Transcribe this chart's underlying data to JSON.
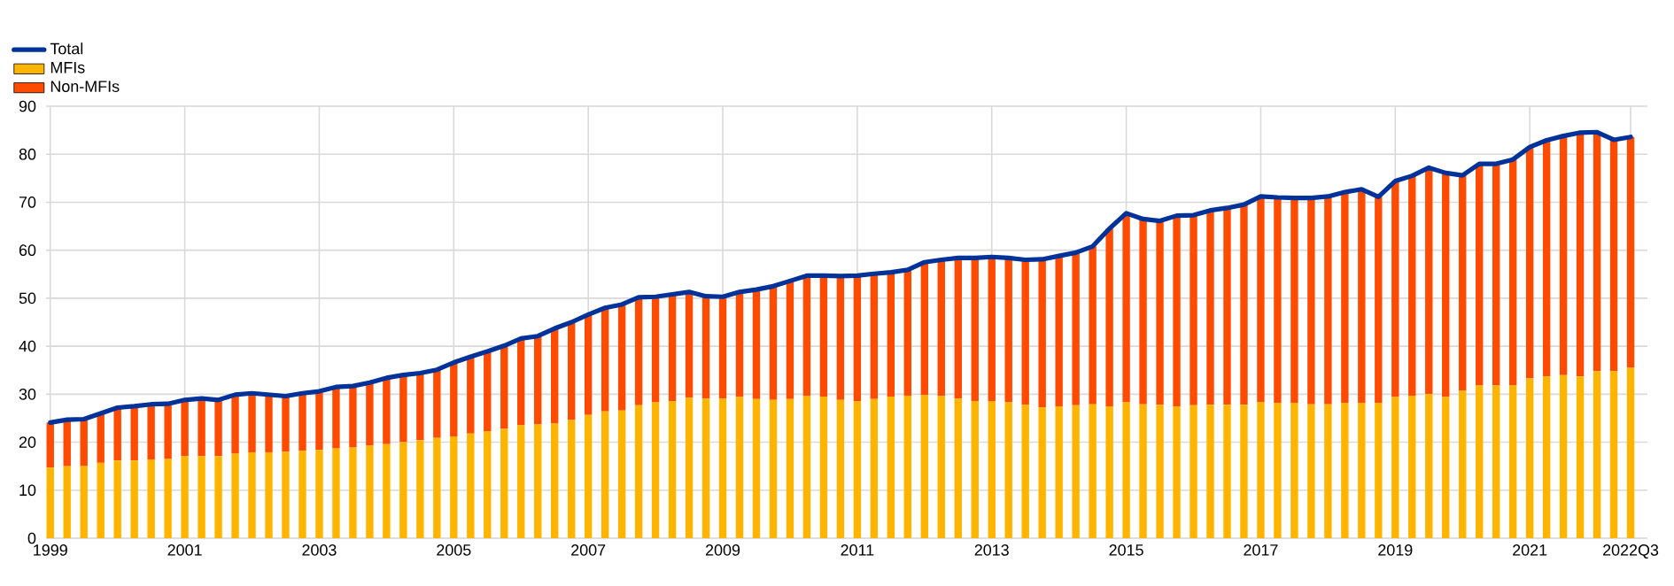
{
  "chart_data": {
    "type": "bar",
    "stacked": true,
    "grid": true,
    "legend": "top left",
    "marker": "none",
    "categories": [
      "1999",
      null,
      null,
      null,
      null,
      null,
      null,
      null,
      "2001",
      null,
      null,
      null,
      null,
      null,
      null,
      null,
      "2003",
      null,
      null,
      null,
      null,
      null,
      null,
      null,
      "2005",
      null,
      null,
      null,
      null,
      null,
      null,
      null,
      "2007",
      null,
      null,
      null,
      null,
      null,
      null,
      null,
      "2009",
      null,
      null,
      null,
      null,
      null,
      null,
      null,
      "2011",
      null,
      null,
      null,
      null,
      null,
      null,
      null,
      "2013",
      null,
      null,
      null,
      null,
      null,
      null,
      null,
      "2015",
      null,
      null,
      null,
      null,
      null,
      null,
      null,
      "2017",
      null,
      null,
      null,
      null,
      null,
      null,
      null,
      "2019",
      null,
      null,
      null,
      null,
      null,
      null,
      null,
      "2021",
      null,
      null,
      null,
      null,
      null,
      "2022Q3"
    ],
    "ylim": [
      0,
      90
    ],
    "yticks": [
      0,
      10,
      20,
      30,
      40,
      50,
      60,
      70,
      80,
      90
    ],
    "series": [
      {
        "name": "Total",
        "type": "line",
        "color": "#003299",
        "values": [
          24.1,
          24.7,
          24.8,
          26.0,
          27.2,
          27.5,
          27.9,
          28.0,
          28.8,
          29.1,
          28.8,
          29.9,
          30.2,
          29.9,
          29.6,
          30.2,
          30.6,
          31.5,
          31.7,
          32.4,
          33.4,
          34.0,
          34.4,
          35.1,
          36.6,
          37.8,
          38.9,
          40.1,
          41.6,
          42.1,
          43.7,
          45.0,
          46.6,
          48.0,
          48.7,
          50.2,
          50.3,
          50.8,
          51.3,
          50.4,
          50.3,
          51.3,
          51.8,
          52.5,
          53.6,
          54.7,
          54.7,
          54.6,
          54.7,
          55.1,
          55.4,
          55.9,
          57.5,
          58.0,
          58.4,
          58.4,
          58.6,
          58.4,
          58.0,
          58.1,
          58.8,
          59.5,
          60.8,
          64.5,
          67.7,
          66.5,
          66.1,
          67.2,
          67.3,
          68.3,
          68.8,
          69.5,
          71.2,
          71.0,
          70.9,
          70.9,
          71.2,
          72.1,
          72.7,
          71.1,
          74.4,
          75.5,
          77.2,
          76.1,
          75.6,
          78.0,
          78.0,
          78.9,
          81.5,
          82.9,
          83.8,
          84.5,
          84.6,
          83.0,
          83.6
        ]
      },
      {
        "name": "MFIs",
        "type": "bar",
        "color": "#ffb400",
        "values": [
          14.7,
          15.0,
          15.0,
          15.7,
          16.2,
          16.2,
          16.4,
          16.5,
          17.1,
          17.1,
          17.1,
          17.6,
          17.9,
          17.9,
          18.0,
          18.2,
          18.4,
          18.7,
          18.9,
          19.3,
          19.6,
          20.0,
          20.4,
          20.9,
          21.2,
          21.8,
          22.3,
          22.8,
          23.5,
          23.7,
          23.9,
          24.6,
          25.7,
          26.4,
          26.6,
          27.7,
          28.3,
          28.6,
          29.3,
          29.1,
          29.1,
          29.4,
          29.0,
          28.8,
          29.0,
          29.6,
          29.5,
          28.8,
          28.6,
          29.0,
          29.5,
          29.7,
          29.9,
          29.6,
          29.1,
          28.6,
          28.6,
          28.3,
          27.8,
          27.3,
          27.5,
          27.7,
          27.9,
          27.5,
          28.3,
          27.9,
          27.8,
          27.5,
          27.7,
          27.8,
          27.8,
          27.8,
          28.4,
          28.2,
          28.2,
          27.9,
          27.9,
          28.2,
          28.2,
          28.2,
          29.4,
          29.7,
          30.0,
          29.4,
          30.7,
          31.8,
          31.8,
          31.8,
          33.3,
          33.7,
          34.0,
          33.7,
          34.8,
          34.8,
          35.5
        ]
      },
      {
        "name": "Non-MFIs",
        "type": "bar",
        "color": "#ff4b00",
        "values": [
          9.4,
          9.7,
          9.8,
          10.3,
          11.0,
          11.3,
          11.5,
          11.5,
          11.7,
          12.0,
          11.7,
          12.3,
          12.3,
          12.0,
          11.6,
          12.0,
          12.2,
          12.8,
          12.8,
          13.1,
          13.8,
          14.0,
          14.0,
          14.2,
          15.4,
          16.0,
          16.6,
          17.3,
          18.1,
          18.4,
          19.8,
          20.4,
          20.9,
          21.6,
          22.1,
          22.5,
          22.0,
          22.2,
          22.0,
          21.3,
          21.2,
          21.9,
          22.8,
          23.7,
          24.6,
          25.1,
          25.2,
          25.8,
          26.1,
          26.1,
          25.9,
          26.2,
          27.6,
          28.4,
          29.3,
          29.8,
          30.0,
          30.1,
          30.2,
          30.8,
          31.3,
          31.8,
          32.9,
          37.0,
          39.4,
          38.6,
          38.3,
          39.7,
          39.6,
          40.5,
          41.0,
          41.7,
          42.8,
          42.8,
          42.7,
          43.0,
          43.3,
          43.9,
          44.5,
          42.9,
          45.0,
          45.8,
          47.2,
          46.7,
          44.9,
          46.2,
          46.2,
          47.1,
          48.2,
          49.2,
          49.8,
          50.8,
          49.8,
          48.2,
          48.1
        ]
      }
    ]
  }
}
